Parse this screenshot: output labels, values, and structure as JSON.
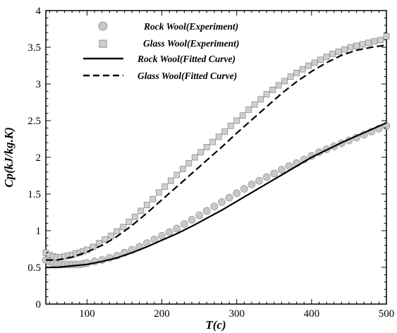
{
  "chart_data": {
    "type": "scatter",
    "title": "",
    "xlabel": "T(c)",
    "ylabel": "Cp(kJ/kg.K)",
    "xlim": [
      45,
      500
    ],
    "ylim": [
      0,
      4
    ],
    "x_ticks": [
      100,
      200,
      300,
      400,
      500
    ],
    "y_ticks": [
      0,
      0.5,
      1,
      1.5,
      2,
      2.5,
      3,
      3.5,
      4
    ],
    "x_tick_labels": [
      "100",
      "200",
      "300",
      "400",
      "500"
    ],
    "y_tick_labels": [
      "0",
      "0.5",
      "1",
      "1.5",
      "2",
      "2.5",
      "3",
      "3.5",
      "4"
    ],
    "grid": false,
    "legend_position": "top-left",
    "series": [
      {
        "name": "Rock Wool(Experiment)",
        "kind": "scatter",
        "marker": "circle",
        "color": "#c8c8c8",
        "edge_color": "#9a9a9a",
        "x": [
          45,
          50,
          55,
          60,
          65,
          70,
          75,
          80,
          85,
          90,
          95,
          100,
          110,
          120,
          130,
          140,
          150,
          160,
          170,
          180,
          190,
          200,
          210,
          220,
          230,
          240,
          250,
          260,
          270,
          280,
          290,
          300,
          310,
          320,
          330,
          340,
          350,
          360,
          370,
          380,
          390,
          400,
          410,
          420,
          430,
          440,
          450,
          460,
          470,
          480,
          490,
          500
        ],
        "y": [
          0.6,
          0.58,
          0.56,
          0.55,
          0.54,
          0.54,
          0.54,
          0.54,
          0.54,
          0.54,
          0.55,
          0.56,
          0.58,
          0.6,
          0.63,
          0.66,
          0.7,
          0.74,
          0.78,
          0.83,
          0.88,
          0.93,
          0.98,
          1.03,
          1.09,
          1.15,
          1.21,
          1.27,
          1.33,
          1.39,
          1.45,
          1.51,
          1.57,
          1.63,
          1.68,
          1.73,
          1.78,
          1.83,
          1.88,
          1.92,
          1.97,
          2.02,
          2.07,
          2.11,
          2.15,
          2.19,
          2.23,
          2.27,
          2.31,
          2.35,
          2.39,
          2.43
        ]
      },
      {
        "name": "Glass Wool(Experiment)",
        "kind": "scatter",
        "marker": "square",
        "color": "#cfcfcf",
        "edge_color": "#8e8e8e",
        "x": [
          45,
          50,
          55,
          60,
          65,
          70,
          75,
          80,
          85,
          90,
          95,
          100,
          108,
          116,
          124,
          132,
          140,
          148,
          156,
          164,
          172,
          180,
          188,
          196,
          204,
          212,
          220,
          228,
          236,
          244,
          252,
          260,
          268,
          276,
          284,
          292,
          300,
          308,
          316,
          324,
          332,
          340,
          348,
          356,
          364,
          372,
          380,
          388,
          396,
          404,
          412,
          420,
          428,
          436,
          444,
          452,
          460,
          468,
          476,
          484,
          492,
          500
        ],
        "y": [
          0.7,
          0.67,
          0.65,
          0.64,
          0.64,
          0.65,
          0.66,
          0.67,
          0.69,
          0.7,
          0.72,
          0.74,
          0.78,
          0.83,
          0.88,
          0.93,
          0.99,
          1.05,
          1.12,
          1.19,
          1.27,
          1.35,
          1.43,
          1.52,
          1.6,
          1.68,
          1.76,
          1.84,
          1.92,
          2.0,
          2.07,
          2.14,
          2.21,
          2.28,
          2.35,
          2.43,
          2.5,
          2.57,
          2.65,
          2.72,
          2.79,
          2.86,
          2.92,
          2.98,
          3.04,
          3.1,
          3.15,
          3.2,
          3.25,
          3.29,
          3.33,
          3.37,
          3.41,
          3.44,
          3.47,
          3.5,
          3.52,
          3.54,
          3.56,
          3.58,
          3.6,
          3.65
        ]
      },
      {
        "name": "Rock Wool(Fitted Curve)",
        "kind": "line",
        "style": "solid",
        "color": "#000000",
        "x": [
          45,
          60,
          80,
          100,
          120,
          140,
          160,
          180,
          200,
          220,
          240,
          260,
          280,
          300,
          320,
          340,
          360,
          380,
          400,
          420,
          440,
          460,
          480,
          500
        ],
        "y": [
          0.5,
          0.5,
          0.52,
          0.54,
          0.58,
          0.63,
          0.7,
          0.78,
          0.87,
          0.96,
          1.06,
          1.17,
          1.28,
          1.4,
          1.52,
          1.64,
          1.76,
          1.88,
          2.0,
          2.1,
          2.2,
          2.29,
          2.38,
          2.47
        ]
      },
      {
        "name": "Glass Wool(Fitted Curve)",
        "kind": "line",
        "style": "dashed",
        "color": "#000000",
        "x": [
          45,
          60,
          80,
          100,
          120,
          140,
          160,
          180,
          200,
          220,
          240,
          260,
          280,
          300,
          320,
          340,
          360,
          380,
          400,
          420,
          440,
          460,
          480,
          500
        ],
        "y": [
          0.6,
          0.6,
          0.64,
          0.71,
          0.8,
          0.92,
          1.07,
          1.24,
          1.42,
          1.6,
          1.78,
          1.96,
          2.14,
          2.33,
          2.51,
          2.69,
          2.87,
          3.03,
          3.17,
          3.29,
          3.39,
          3.46,
          3.5,
          3.53
        ]
      }
    ]
  }
}
